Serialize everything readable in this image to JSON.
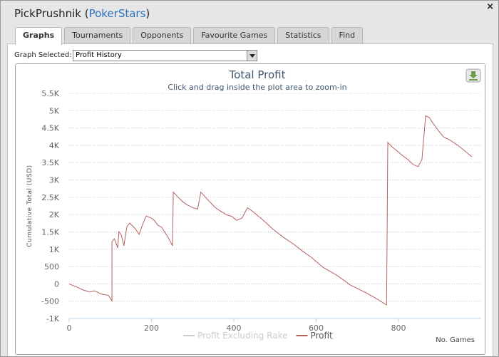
{
  "header": {
    "title_parts": [
      "PickPrushnik (",
      "PokerStars",
      ")"
    ],
    "close": "×"
  },
  "tabs": [
    "Graphs",
    "Tournaments",
    "Opponents",
    "Favourite Games",
    "Statistics",
    "Find"
  ],
  "active_tab": 0,
  "selector": {
    "label": "Graph Selected:",
    "value": "Profit History"
  },
  "chart_data": {
    "type": "line",
    "title": "Total Profit",
    "subtitle": "Click and drag inside the plot area to zoom-in",
    "y_label": "Cumulative Total (USD)",
    "x_label": "No. Games",
    "xlim": [
      0,
      987
    ],
    "xticks": [
      0,
      200,
      400,
      600,
      800
    ],
    "ylim": [
      -1000,
      5500
    ],
    "yticks": [
      {
        "value": -1000,
        "label": "-1K"
      },
      -500,
      0,
      500,
      {
        "value": 1000,
        "label": "1K"
      },
      {
        "value": 1500,
        "label": "1.5K"
      },
      {
        "value": 2000,
        "label": "2K"
      },
      {
        "value": 2500,
        "label": "2.5K"
      },
      {
        "value": 3000,
        "label": "3K"
      },
      {
        "value": 3500,
        "label": "3.5K"
      },
      {
        "value": 4000,
        "label": "4K"
      },
      {
        "value": 4500,
        "label": "4.5K"
      },
      {
        "value": 5000,
        "label": "5K"
      },
      {
        "value": 5500,
        "label": "5.5K"
      }
    ],
    "grid": true,
    "series": [
      {
        "name": "Profit Excluding Rake",
        "color": "#cccccc",
        "visible": false
      },
      {
        "name": "Profit",
        "color": "#b5625f",
        "visible": true,
        "x": [
          0,
          20,
          35,
          50,
          61,
          80,
          95,
          104,
          104,
          110,
          118,
          121,
          127,
          133,
          140,
          147,
          160,
          170,
          178,
          187,
          200,
          208,
          215,
          225,
          240,
          251,
          253,
          265,
          275,
          286,
          300,
          312,
          320,
          335,
          355,
          368,
          381,
          395,
          407,
          420,
          433,
          445,
          459,
          475,
          494,
          520,
          545,
          563,
          590,
          615,
          650,
          684,
          720,
          750,
          771,
          774,
          785,
          797,
          810,
          823,
          835,
          848,
          857,
          866,
          875,
          883,
          895,
          909,
          925,
          944,
          960,
          978
        ],
        "values": [
          0,
          -100,
          -180,
          -230,
          -200,
          -300,
          -330,
          -490,
          1225,
          1300,
          1040,
          1510,
          1400,
          1100,
          1650,
          1755,
          1600,
          1430,
          1700,
          1960,
          1900,
          1815,
          1700,
          1630,
          1350,
          1100,
          2650,
          2500,
          2380,
          2285,
          2200,
          2160,
          2650,
          2450,
          2200,
          2100,
          2000,
          1950,
          1835,
          1900,
          2200,
          2100,
          1960,
          1800,
          1590,
          1350,
          1150,
          980,
          750,
          490,
          250,
          -40,
          -250,
          -450,
          -610,
          4080,
          3950,
          3835,
          3700,
          3590,
          3450,
          3385,
          3590,
          4855,
          4800,
          4650,
          4450,
          4245,
          4150,
          4000,
          3850,
          3670
        ]
      }
    ]
  }
}
